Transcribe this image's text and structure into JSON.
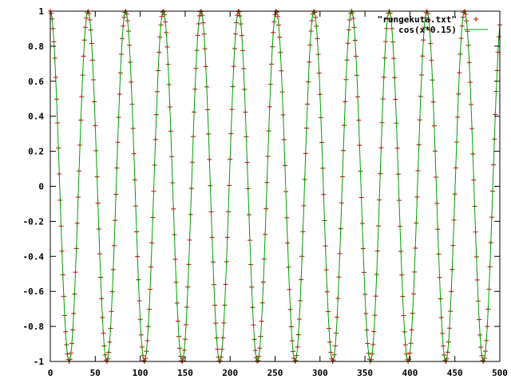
{
  "chart_data": {
    "type": "line",
    "title": "",
    "xlabel": "",
    "ylabel": "",
    "xlim": [
      0,
      500
    ],
    "ylim": [
      -1,
      1
    ],
    "x_ticks": [
      0,
      50,
      100,
      150,
      200,
      250,
      300,
      350,
      400,
      450,
      500
    ],
    "x_tick_labels": [
      "0",
      "50",
      "100",
      "150",
      "200",
      "250",
      "300",
      "350",
      "400",
      "450",
      "500"
    ],
    "y_ticks": [
      1,
      0.8,
      0.6,
      0.4,
      0.2,
      0,
      -0.2,
      -0.4,
      -0.6,
      -0.8,
      -1
    ],
    "y_tick_labels": [
      "1",
      "0.8",
      "0.6",
      "0.4",
      "0.2",
      "0",
      "-0.2",
      "-0.4",
      "-0.6",
      "-0.8",
      "-1"
    ],
    "grid": false,
    "legend_position": "top-right",
    "series": [
      {
        "name": "\"rungekuta.txt\"",
        "style": "points",
        "marker": "+",
        "color": "#cc0000",
        "x_start": 0,
        "x_end": 500,
        "x_step": 1,
        "function": "cos(0.15*x)"
      },
      {
        "name": "cos(x*0.15)",
        "style": "line",
        "color": "#00a000",
        "function": "cos(0.15*x)"
      }
    ]
  }
}
